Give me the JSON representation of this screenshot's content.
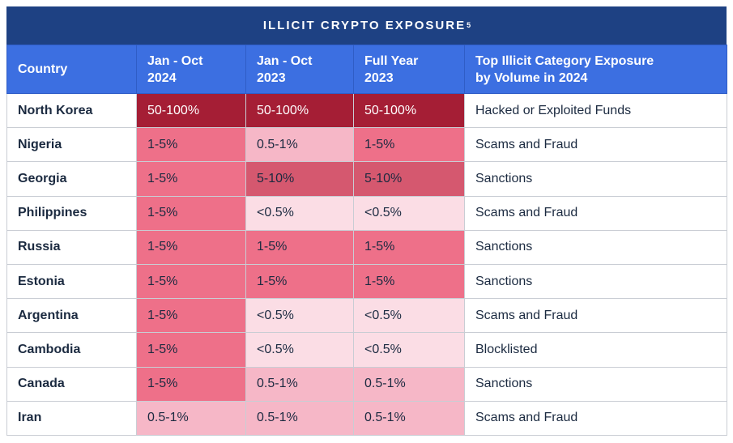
{
  "title": {
    "text": "ILLICIT CRYPTO EXPOSURE",
    "superscript": "5"
  },
  "table": {
    "headers": [
      {
        "lines": [
          "Country"
        ]
      },
      {
        "lines": [
          "Jan - Oct",
          "2024"
        ]
      },
      {
        "lines": [
          "Jan - Oct",
          "2023"
        ]
      },
      {
        "lines": [
          "Full Year",
          "2023"
        ]
      },
      {
        "lines": [
          "Top Illicit Category Exposure",
          "by Volume in 2024"
        ]
      }
    ],
    "rows": [
      {
        "country": "North Korea",
        "values": [
          "50-100%",
          "50-100%",
          "50-100%"
        ],
        "category": "Hacked or Exploited Funds"
      },
      {
        "country": "Nigeria",
        "values": [
          "1-5%",
          "0.5-1%",
          "1-5%"
        ],
        "category": "Scams and Fraud"
      },
      {
        "country": "Georgia",
        "values": [
          "1-5%",
          "5-10%",
          "5-10%"
        ],
        "category": "Sanctions"
      },
      {
        "country": "Philippines",
        "values": [
          "1-5%",
          "<0.5%",
          "<0.5%"
        ],
        "category": "Scams and Fraud"
      },
      {
        "country": "Russia",
        "values": [
          "1-5%",
          "1-5%",
          "1-5%"
        ],
        "category": "Sanctions"
      },
      {
        "country": "Estonia",
        "values": [
          "1-5%",
          "1-5%",
          "1-5%"
        ],
        "category": "Sanctions"
      },
      {
        "country": "Argentina",
        "values": [
          "1-5%",
          "<0.5%",
          "<0.5%"
        ],
        "category": "Scams and Fraud"
      },
      {
        "country": "Cambodia",
        "values": [
          "1-5%",
          "<0.5%",
          "<0.5%"
        ],
        "category": "Blocklisted"
      },
      {
        "country": "Canada",
        "values": [
          "1-5%",
          "0.5-1%",
          "0.5-1%"
        ],
        "category": "Sanctions"
      },
      {
        "country": "Iran",
        "values": [
          "0.5-1%",
          "0.5-1%",
          "0.5-1%"
        ],
        "category": "Scams and Fraud"
      }
    ]
  },
  "colors": {
    "title_bar_bg": "#1e4183",
    "header_bg": "#3c6fe1",
    "header_divider": "#2f5dc6",
    "body_text": "#1b2a40",
    "grid_border": "#c9cdd4",
    "value_scale": {
      "50-100%": {
        "bg": "#a51e35",
        "text": "#ffffff"
      },
      "5-10%": {
        "bg": "#d5586f",
        "text": "#1b2a40"
      },
      "1-5%": {
        "bg": "#ee7089",
        "text": "#1b2a40"
      },
      "0.5-1%": {
        "bg": "#f6b7c7",
        "text": "#1b2a40"
      },
      "<0.5%": {
        "bg": "#fbdde5",
        "text": "#1b2a40"
      }
    }
  }
}
